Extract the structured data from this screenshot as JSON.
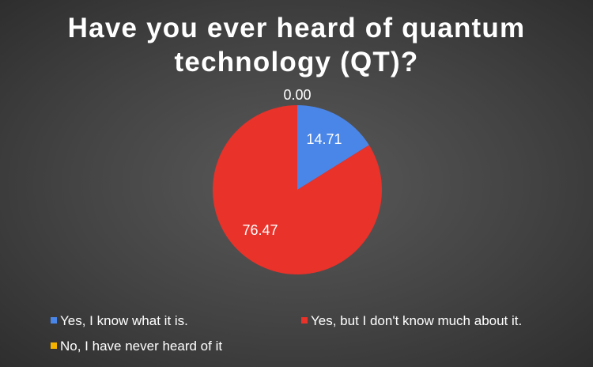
{
  "chart_data": {
    "type": "pie",
    "title_lines": [
      "Have you ever heard of quantum",
      "technology (QT)?"
    ],
    "categories": [
      "Yes, I know what it is.",
      "Yes, but I don't know much about it.",
      "No, I have never heard of it"
    ],
    "values": [
      14.71,
      76.47,
      0.0
    ],
    "data_labels": [
      "14.71",
      "76.47",
      "0.00"
    ],
    "colors": [
      "#4a86e8",
      "#e8322a",
      "#f4b400"
    ],
    "legend_position": "bottom"
  }
}
